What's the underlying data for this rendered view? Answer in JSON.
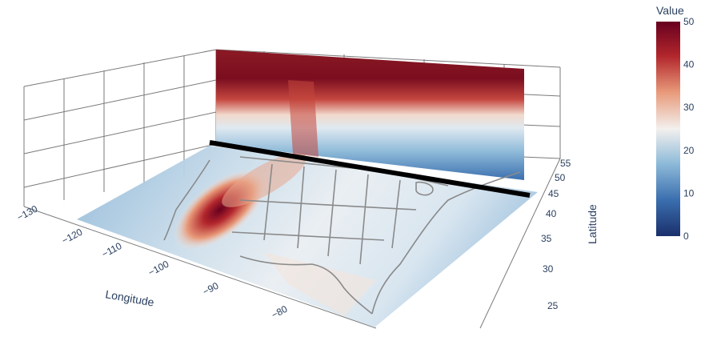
{
  "chart_data": {
    "type": "heatmap",
    "subtype": "3d-surface-with-vertical-cross-section",
    "xlabel": "Longitude",
    "ylabel": "Latitude",
    "x_ticks": [
      "−130",
      "−120",
      "−110",
      "−100",
      "−90",
      "−80"
    ],
    "y_ticks": [
      "25",
      "30",
      "35",
      "40",
      "45",
      "50",
      "55"
    ],
    "colorbar": {
      "title": "Value",
      "range": [
        0,
        50
      ],
      "ticks": [
        "0",
        "10",
        "20",
        "30",
        "40",
        "50"
      ],
      "colorscale": "RdBu (reversed)",
      "colors": [
        "#1a2f6b",
        "#3b6faf",
        "#8fbbd9",
        "#f3f0ee",
        "#e89a7a",
        "#b2262c",
        "#67001f"
      ]
    },
    "surface": {
      "description_values": [
        {
          "lon": -101,
          "lat": 36,
          "value": 48
        },
        {
          "lon": -97,
          "lat": 41,
          "value": 36
        },
        {
          "lon": -115,
          "lat": 45,
          "value": 12
        },
        {
          "lon": -85,
          "lat": 35,
          "value": 22
        },
        {
          "lon": -75,
          "lat": 42,
          "value": 16
        }
      ]
    },
    "cross_section": {
      "along_latitude": 47,
      "layers": [
        {
          "level": "top",
          "value": 46
        },
        {
          "level": "middle",
          "value": 30
        },
        {
          "level": "bottom",
          "value": 12
        }
      ]
    },
    "grid": true,
    "legend": "colorbar-right"
  }
}
